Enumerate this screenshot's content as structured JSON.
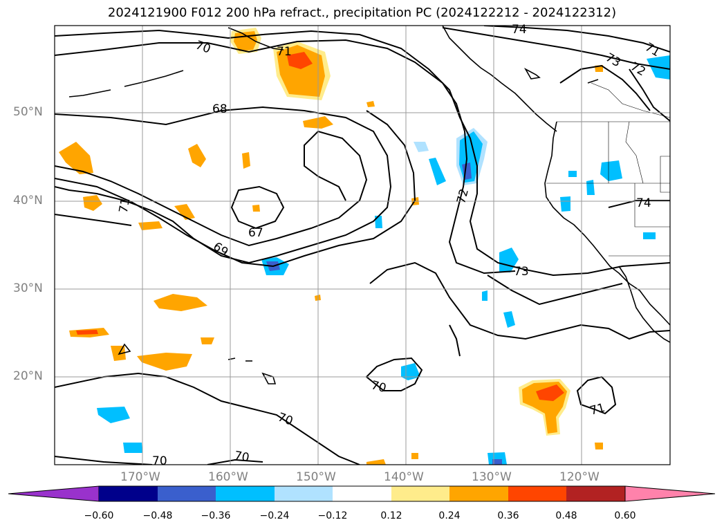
{
  "title": "2024121900 F012 200 hPa refract., precipitation PC (2024122212 - 2024122312)",
  "axes": {
    "lat_labels": [
      "50°N",
      "40°N",
      "30°N",
      "20°N"
    ],
    "lon_labels": [
      "170°W",
      "160°W",
      "150°W",
      "140°W",
      "130°W",
      "120°W"
    ]
  },
  "contour_labels": [
    "74",
    "70",
    "71",
    "73",
    "72",
    "71",
    "68",
    "72",
    "74",
    "71",
    "67",
    "69",
    "73",
    "70",
    "71",
    "70",
    "70",
    "70"
  ],
  "colorbar": {
    "ticks": [
      "−0.60",
      "−0.48",
      "−0.36",
      "−0.24",
      "−0.12",
      "0.12",
      "0.24",
      "0.36",
      "0.48",
      "0.60"
    ],
    "colors": [
      "#9932cc",
      "#00008b",
      "#3a5fcd",
      "#00bfff",
      "#b0e2ff",
      "#ffffff",
      "#ffec8b",
      "#ffa500",
      "#ff4500",
      "#b22222",
      "#ff82ab"
    ]
  }
}
